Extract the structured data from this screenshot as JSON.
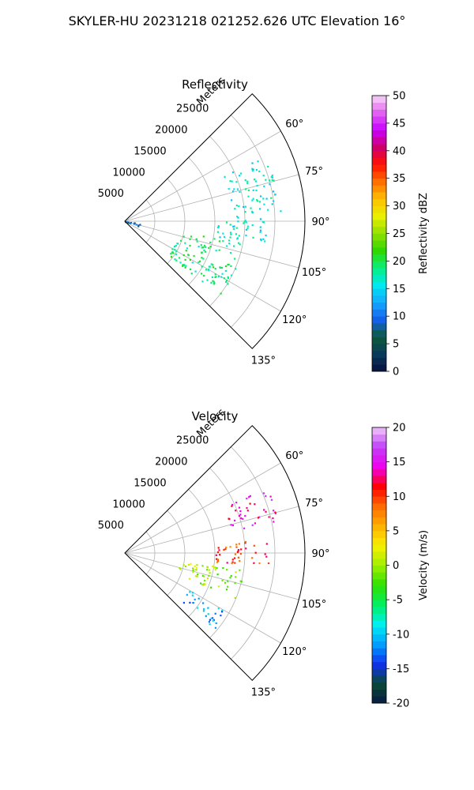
{
  "figure": {
    "suptitle": "SKYLER-HU  20231218  021252.626 UTC Elevation 16°"
  },
  "chart_data": [
    {
      "type": "heatmap",
      "subtype": "polar-sector",
      "title": "Reflectivity",
      "radial_label": "Meters",
      "radial_ticks": [
        5000,
        10000,
        15000,
        20000,
        25000
      ],
      "radial_tick_labels": [
        "5000",
        "10000",
        "15000",
        "20000",
        "25000"
      ],
      "rmax": 30000,
      "theta_range_deg": [
        45,
        135
      ],
      "theta_ticks": [
        60,
        75,
        90,
        105,
        120,
        135
      ],
      "theta_tick_labels": [
        "60°",
        "75°",
        "90°",
        "105°",
        "120°",
        "135°"
      ],
      "grid": true,
      "colorbar": {
        "label": "Reflectivity dBZ",
        "range": [
          0,
          50
        ],
        "ticks": [
          0,
          5,
          10,
          15,
          20,
          25,
          30,
          35,
          40,
          45,
          50
        ],
        "tick_labels": [
          "0",
          "5",
          "10",
          "15",
          "20",
          "25",
          "30",
          "35",
          "40",
          "45",
          "50"
        ],
        "colormap": "pyart_HomeyerRainbow"
      },
      "echo_summary": [
        {
          "region": "north-east lobe",
          "theta_deg": [
            65,
            88
          ],
          "range_m": [
            18000,
            26000
          ],
          "value": 16
        },
        {
          "region": "eastern band",
          "theta_deg": [
            88,
            100
          ],
          "range_m": [
            15000,
            24000
          ],
          "value": 16
        },
        {
          "region": "south-east body",
          "theta_deg": [
            100,
            128
          ],
          "range_m": [
            9000,
            20000
          ],
          "value": 19
        },
        {
          "region": "near-radar cluster",
          "theta_deg": [
            95,
            110
          ],
          "range_m": [
            0,
            2500
          ],
          "value": 9
        }
      ]
    },
    {
      "type": "heatmap",
      "subtype": "polar-sector",
      "title": "Velocity",
      "radial_label": "Meters",
      "radial_ticks": [
        5000,
        10000,
        15000,
        20000,
        25000
      ],
      "radial_tick_labels": [
        "5000",
        "10000",
        "15000",
        "20000",
        "25000"
      ],
      "rmax": 30000,
      "theta_range_deg": [
        45,
        135
      ],
      "theta_ticks": [
        60,
        75,
        90,
        105,
        120,
        135
      ],
      "theta_tick_labels": [
        "60°",
        "75°",
        "90°",
        "105°",
        "120°",
        "135°"
      ],
      "grid": true,
      "colorbar": {
        "label": "Velocity (m/s)",
        "range": [
          -20,
          20
        ],
        "ticks": [
          -20,
          -15,
          -10,
          -5,
          0,
          5,
          10,
          15,
          20
        ],
        "tick_labels": [
          "-20",
          "-15",
          "-10",
          "-5",
          "0",
          "5",
          "10",
          "15",
          "20"
        ],
        "colormap": "pyart_BuDRd18"
      },
      "echo_summary": [
        {
          "region": "north-east lobe",
          "theta_deg": [
            65,
            78
          ],
          "range_m": [
            18000,
            26000
          ],
          "value": 14
        },
        {
          "region": "eastern band",
          "theta_deg": [
            84,
            96
          ],
          "range_m": [
            15000,
            24000
          ],
          "value": 10
        },
        {
          "region": "south-east body",
          "theta_deg": [
            98,
            112
          ],
          "range_m": [
            9000,
            20000
          ],
          "value": 0
        },
        {
          "region": "southern edge",
          "theta_deg": [
            120,
            130
          ],
          "range_m": [
            12000,
            20000
          ],
          "value": -11
        }
      ]
    }
  ],
  "colors": {
    "reflectivity_stops": [
      "#071040",
      "#0a3a5a",
      "#0c5a3a",
      "#1560e8",
      "#14a8ff",
      "#00e8f0",
      "#08f080",
      "#30d800",
      "#90e000",
      "#e8f000",
      "#ffc000",
      "#ff7000",
      "#ff1000",
      "#d0006a",
      "#c800ff",
      "#e060f0",
      "#f8d8f8"
    ],
    "velocity_stops": [
      "#071a40",
      "#0a4a38",
      "#1030f0",
      "#00a0ff",
      "#00f0f0",
      "#00f060",
      "#30e000",
      "#a0f000",
      "#f8f000",
      "#ffb000",
      "#ff6a00",
      "#ff0000",
      "#f000f0",
      "#c040f8",
      "#f0c8f8"
    ]
  }
}
